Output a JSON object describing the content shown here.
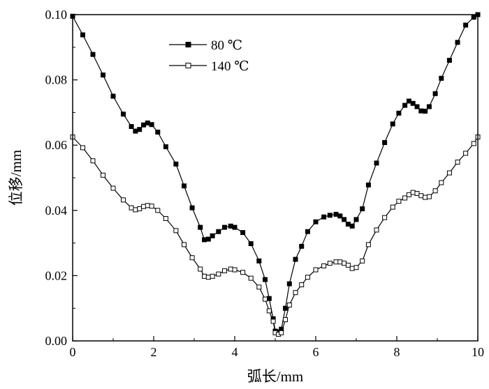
{
  "chart_data": {
    "type": "line",
    "xlabel": "弧长/mm",
    "ylabel": "位移/mm",
    "xlim": [
      0,
      10
    ],
    "ylim": [
      0,
      0.1
    ],
    "x_ticks": [
      "0",
      "2",
      "4",
      "6",
      "8",
      "10"
    ],
    "y_ticks": [
      "0.00",
      "0.02",
      "0.04",
      "0.06",
      "0.08",
      "0.10"
    ],
    "grid": false,
    "legend_position": "top-left",
    "series": [
      {
        "name": "80 ℃",
        "marker": "filled-square",
        "color": "#000000",
        "x": [
          0,
          0.25,
          0.5,
          0.75,
          1.0,
          1.25,
          1.45,
          1.55,
          1.65,
          1.75,
          1.85,
          1.95,
          2.1,
          2.3,
          2.55,
          2.75,
          2.95,
          3.15,
          3.25,
          3.35,
          3.45,
          3.6,
          3.75,
          3.9,
          4.0,
          4.2,
          4.4,
          4.6,
          4.75,
          4.85,
          4.95,
          5.0,
          5.08,
          5.15,
          5.25,
          5.35,
          5.5,
          5.65,
          5.8,
          6.0,
          6.2,
          6.35,
          6.5,
          6.6,
          6.7,
          6.8,
          6.9,
          7.0,
          7.15,
          7.3,
          7.5,
          7.7,
          7.9,
          8.05,
          8.2,
          8.3,
          8.4,
          8.5,
          8.6,
          8.7,
          8.8,
          8.95,
          9.1,
          9.3,
          9.5,
          9.7,
          9.9,
          10.0
        ],
        "y": [
          0.0995,
          0.0938,
          0.0878,
          0.0815,
          0.075,
          0.0695,
          0.0657,
          0.0643,
          0.0648,
          0.0662,
          0.0668,
          0.0663,
          0.064,
          0.0595,
          0.0542,
          0.0475,
          0.0408,
          0.0348,
          0.031,
          0.0312,
          0.0322,
          0.0335,
          0.0348,
          0.0352,
          0.0348,
          0.0332,
          0.0298,
          0.0245,
          0.0188,
          0.013,
          0.0068,
          0.003,
          0.0028,
          0.0036,
          0.01,
          0.0175,
          0.025,
          0.029,
          0.0335,
          0.0365,
          0.038,
          0.0385,
          0.0388,
          0.0383,
          0.0372,
          0.0358,
          0.0352,
          0.0372,
          0.0405,
          0.0478,
          0.0545,
          0.0608,
          0.0665,
          0.0698,
          0.0722,
          0.0735,
          0.0728,
          0.0718,
          0.0705,
          0.0704,
          0.0718,
          0.0758,
          0.0805,
          0.086,
          0.0915,
          0.0968,
          0.0992,
          0.1
        ]
      },
      {
        "name": "140 ℃",
        "marker": "open-square",
        "color": "#000000",
        "x": [
          0,
          0.25,
          0.5,
          0.75,
          1.0,
          1.25,
          1.45,
          1.55,
          1.65,
          1.75,
          1.85,
          1.95,
          2.1,
          2.3,
          2.55,
          2.75,
          2.95,
          3.15,
          3.25,
          3.35,
          3.45,
          3.6,
          3.75,
          3.9,
          4.0,
          4.2,
          4.4,
          4.6,
          4.75,
          4.85,
          4.95,
          5.0,
          5.08,
          5.15,
          5.25,
          5.35,
          5.5,
          5.65,
          5.8,
          6.0,
          6.2,
          6.35,
          6.5,
          6.6,
          6.7,
          6.8,
          6.9,
          7.0,
          7.15,
          7.3,
          7.5,
          7.7,
          7.9,
          8.05,
          8.2,
          8.3,
          8.4,
          8.5,
          8.6,
          8.7,
          8.8,
          8.95,
          9.1,
          9.3,
          9.5,
          9.7,
          9.9,
          10.0
        ],
        "y": [
          0.0625,
          0.0592,
          0.0552,
          0.0508,
          0.0468,
          0.0432,
          0.0408,
          0.0402,
          0.0405,
          0.0412,
          0.0415,
          0.0413,
          0.04,
          0.0375,
          0.0338,
          0.0295,
          0.0255,
          0.022,
          0.0198,
          0.0195,
          0.0198,
          0.0205,
          0.0215,
          0.022,
          0.0218,
          0.021,
          0.0192,
          0.0165,
          0.0128,
          0.0092,
          0.006,
          0.0025,
          0.002,
          0.0025,
          0.0065,
          0.011,
          0.0148,
          0.0172,
          0.0195,
          0.0218,
          0.023,
          0.0238,
          0.0242,
          0.0242,
          0.0238,
          0.0232,
          0.0222,
          0.0225,
          0.0245,
          0.0295,
          0.034,
          0.0378,
          0.041,
          0.0428,
          0.0438,
          0.0448,
          0.0455,
          0.0452,
          0.0445,
          0.044,
          0.0442,
          0.046,
          0.0485,
          0.0515,
          0.0548,
          0.0575,
          0.0605,
          0.0625
        ]
      }
    ]
  }
}
